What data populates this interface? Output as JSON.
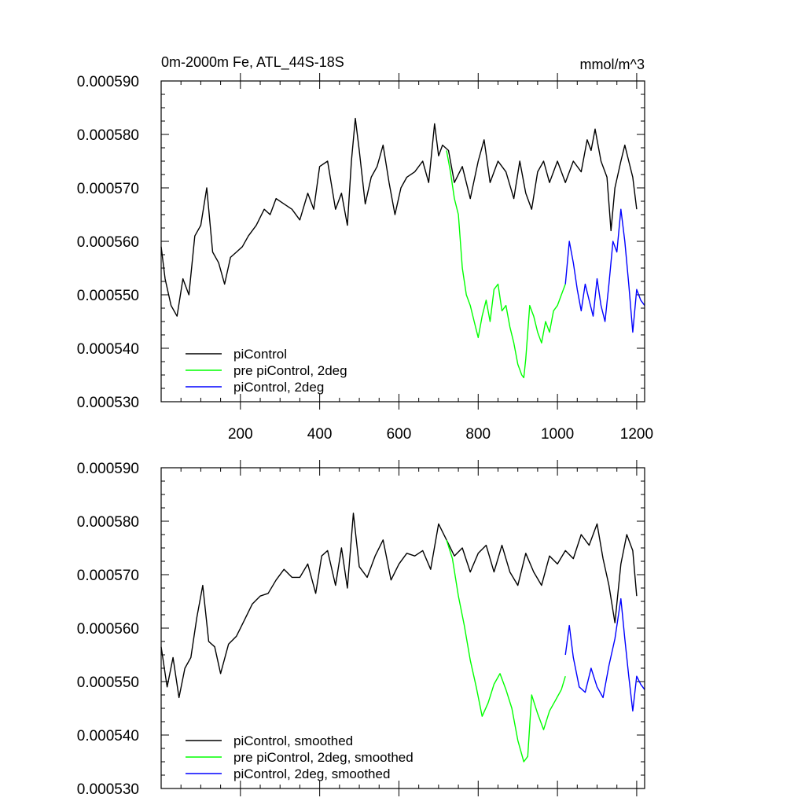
{
  "chart_data": [
    {
      "type": "line",
      "title": "0m-2000m Fe, ATL_44S-18S",
      "units": "mmol/m^3",
      "xlim": [
        0,
        1220
      ],
      "ylim": [
        0.00053,
        0.00059
      ],
      "x_ticks": [
        "200",
        "400",
        "600",
        "800",
        "1000",
        "1200"
      ],
      "y_ticks": [
        "0.000590",
        "0.000580",
        "0.000570",
        "0.000560",
        "0.000550",
        "0.000540",
        "0.000530"
      ],
      "legend_position": "bottom-left",
      "series": [
        {
          "name": "piControl",
          "color": "#000000",
          "x": [
            0,
            10,
            25,
            40,
            55,
            70,
            85,
            100,
            115,
            130,
            145,
            160,
            175,
            190,
            205,
            220,
            240,
            260,
            275,
            290,
            310,
            330,
            350,
            370,
            385,
            400,
            420,
            440,
            455,
            470,
            480,
            490,
            500,
            515,
            530,
            545,
            560,
            575,
            590,
            605,
            620,
            640,
            660,
            675,
            690,
            700,
            710,
            725,
            740,
            760,
            780,
            800,
            815,
            830,
            850,
            870,
            890,
            905,
            920,
            935,
            950,
            965,
            980,
            1000,
            1020,
            1040,
            1060,
            1075,
            1085,
            1095,
            1110,
            1125,
            1135,
            1145,
            1160,
            1170,
            1180,
            1190,
            1200
          ],
          "y": [
            0.000559,
            0.000553,
            0.000548,
            0.000546,
            0.000553,
            0.00055,
            0.000561,
            0.000563,
            0.00057,
            0.000558,
            0.000556,
            0.000552,
            0.000557,
            0.000558,
            0.000559,
            0.000561,
            0.000563,
            0.000566,
            0.000565,
            0.000568,
            0.000567,
            0.000566,
            0.000564,
            0.000569,
            0.000566,
            0.000574,
            0.000575,
            0.000566,
            0.000569,
            0.000563,
            0.000575,
            0.000583,
            0.000577,
            0.000567,
            0.000572,
            0.000574,
            0.000578,
            0.000571,
            0.000565,
            0.00057,
            0.000572,
            0.000573,
            0.000575,
            0.000571,
            0.000582,
            0.000576,
            0.000578,
            0.000577,
            0.000571,
            0.000574,
            0.000568,
            0.000575,
            0.000579,
            0.000571,
            0.000575,
            0.000573,
            0.000568,
            0.000575,
            0.000569,
            0.000566,
            0.000573,
            0.000575,
            0.000571,
            0.000575,
            0.000571,
            0.000575,
            0.000573,
            0.000579,
            0.000577,
            0.000581,
            0.000575,
            0.000572,
            0.000562,
            0.00057,
            0.000575,
            0.000578,
            0.000575,
            0.000572,
            0.000566
          ]
        },
        {
          "name": "pre piControl, 2deg",
          "color": "#00ff00",
          "x": [
            720,
            730,
            740,
            750,
            760,
            770,
            780,
            790,
            800,
            810,
            820,
            830,
            840,
            850,
            860,
            870,
            880,
            890,
            900,
            910,
            915,
            920,
            930,
            940,
            950,
            960,
            970,
            980,
            990,
            1000,
            1010,
            1020
          ],
          "y": [
            0.000577,
            0.000573,
            0.000568,
            0.000565,
            0.000555,
            0.00055,
            0.000548,
            0.000545,
            0.000542,
            0.000546,
            0.000549,
            0.000545,
            0.000551,
            0.000552,
            0.000547,
            0.000548,
            0.000544,
            0.000541,
            0.000537,
            0.000535,
            0.0005345,
            0.000538,
            0.000548,
            0.000546,
            0.000543,
            0.000541,
            0.000545,
            0.000543,
            0.000547,
            0.000548,
            0.00055,
            0.000552
          ]
        },
        {
          "name": "piControl, 2deg",
          "color": "#0000ff",
          "x": [
            1020,
            1030,
            1040,
            1050,
            1060,
            1070,
            1080,
            1090,
            1100,
            1110,
            1120,
            1130,
            1140,
            1150,
            1160,
            1170,
            1180,
            1190,
            1200,
            1210,
            1220
          ],
          "y": [
            0.000552,
            0.00056,
            0.000556,
            0.000551,
            0.000547,
            0.000552,
            0.000549,
            0.000546,
            0.000553,
            0.000548,
            0.000545,
            0.000552,
            0.00056,
            0.000558,
            0.000566,
            0.00056,
            0.000552,
            0.000543,
            0.000551,
            0.000549,
            0.000548
          ]
        }
      ]
    },
    {
      "type": "line",
      "title": "",
      "xlim": [
        0,
        1220
      ],
      "ylim": [
        0.00053,
        0.00059
      ],
      "y_ticks": [
        "0.000590",
        "0.000580",
        "0.000570",
        "0.000560",
        "0.000550",
        "0.000540",
        "0.000530"
      ],
      "legend_position": "bottom-left",
      "series": [
        {
          "name": "piControl, smoothed",
          "color": "#000000",
          "x": [
            0,
            15,
            30,
            45,
            60,
            75,
            90,
            105,
            120,
            135,
            150,
            170,
            190,
            210,
            230,
            250,
            270,
            290,
            310,
            330,
            350,
            370,
            390,
            405,
            420,
            440,
            455,
            470,
            485,
            500,
            520,
            540,
            560,
            580,
            600,
            620,
            640,
            660,
            680,
            700,
            720,
            740,
            760,
            780,
            800,
            820,
            840,
            860,
            880,
            900,
            920,
            940,
            960,
            980,
            1000,
            1020,
            1040,
            1060,
            1080,
            1100,
            1115,
            1130,
            1145,
            1160,
            1175,
            1190,
            1200
          ],
          "y": [
            0.0005565,
            0.000549,
            0.0005545,
            0.000547,
            0.0005525,
            0.0005545,
            0.000562,
            0.000568,
            0.0005575,
            0.0005565,
            0.0005515,
            0.000557,
            0.0005585,
            0.0005615,
            0.0005645,
            0.000566,
            0.0005665,
            0.000569,
            0.000571,
            0.0005695,
            0.0005695,
            0.000572,
            0.0005665,
            0.0005735,
            0.0005745,
            0.000568,
            0.000575,
            0.0005675,
            0.0005815,
            0.0005715,
            0.0005695,
            0.0005735,
            0.0005765,
            0.000569,
            0.000572,
            0.000574,
            0.0005735,
            0.0005745,
            0.000571,
            0.0005795,
            0.0005765,
            0.0005735,
            0.000575,
            0.0005705,
            0.000574,
            0.0005755,
            0.0005705,
            0.0005755,
            0.0005705,
            0.000568,
            0.000574,
            0.0005705,
            0.000568,
            0.0005735,
            0.000572,
            0.0005745,
            0.000573,
            0.0005775,
            0.0005755,
            0.0005795,
            0.000573,
            0.000568,
            0.000561,
            0.000572,
            0.0005775,
            0.0005745,
            0.000566
          ]
        },
        {
          "name": "pre piControl, 2deg, smoothed",
          "color": "#00ff00",
          "x": [
            720,
            735,
            750,
            765,
            780,
            795,
            810,
            825,
            840,
            855,
            870,
            885,
            900,
            915,
            925,
            935,
            950,
            965,
            980,
            995,
            1010,
            1020
          ],
          "y": [
            0.0005765,
            0.000573,
            0.000566,
            0.0005605,
            0.000554,
            0.000549,
            0.0005435,
            0.000546,
            0.0005495,
            0.0005515,
            0.0005485,
            0.000545,
            0.000539,
            0.000535,
            0.000536,
            0.0005475,
            0.000544,
            0.000541,
            0.0005445,
            0.0005465,
            0.0005485,
            0.000551
          ]
        },
        {
          "name": "piControl, 2deg, smoothed",
          "color": "#0000ff",
          "x": [
            1020,
            1030,
            1040,
            1055,
            1070,
            1085,
            1100,
            1115,
            1130,
            1145,
            1160,
            1170,
            1180,
            1190,
            1200,
            1210,
            1220
          ],
          "y": [
            0.000555,
            0.0005605,
            0.0005545,
            0.000549,
            0.000548,
            0.0005525,
            0.000549,
            0.000547,
            0.000553,
            0.000558,
            0.0005655,
            0.000558,
            0.000551,
            0.0005445,
            0.000551,
            0.0005495,
            0.0005485
          ]
        }
      ]
    }
  ]
}
